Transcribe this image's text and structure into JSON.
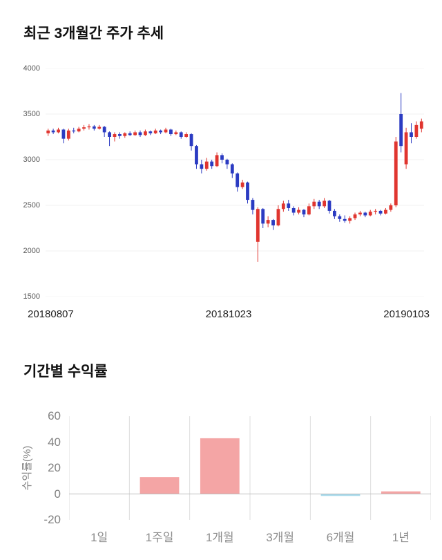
{
  "sections": {
    "price": {
      "title": "최근 3개월간 주가 추세"
    },
    "returns": {
      "title": "기간별 수익률"
    }
  },
  "chart_data": [
    {
      "type": "candlestick",
      "title": "최근 3개월간 주가 추세",
      "ylim": [
        1500,
        4000
      ],
      "yticks": [
        4000,
        3500,
        3000,
        2500,
        2000,
        1500
      ],
      "xticks": [
        "20180807",
        "20181023",
        "20190103"
      ],
      "colors": {
        "up": "#e0352f",
        "down": "#2b3bc2",
        "grid": "#f0f0f0"
      },
      "candles": [
        [
          3290,
          3340,
          3260,
          3320
        ],
        [
          3320,
          3340,
          3280,
          3300
        ],
        [
          3300,
          3350,
          3290,
          3330
        ],
        [
          3330,
          3340,
          3180,
          3230
        ],
        [
          3230,
          3340,
          3210,
          3320
        ],
        [
          3320,
          3350,
          3290,
          3310
        ],
        [
          3310,
          3360,
          3300,
          3340
        ],
        [
          3340,
          3380,
          3320,
          3355
        ],
        [
          3355,
          3390,
          3330,
          3365
        ],
        [
          3365,
          3380,
          3320,
          3340
        ],
        [
          3340,
          3380,
          3330,
          3360
        ],
        [
          3360,
          3370,
          3250,
          3300
        ],
        [
          3300,
          3310,
          3150,
          3250
        ],
        [
          3250,
          3300,
          3200,
          3280
        ],
        [
          3280,
          3300,
          3230,
          3260
        ],
        [
          3260,
          3300,
          3240,
          3290
        ],
        [
          3290,
          3310,
          3260,
          3270
        ],
        [
          3270,
          3320,
          3260,
          3300
        ],
        [
          3300,
          3320,
          3250,
          3270
        ],
        [
          3270,
          3330,
          3260,
          3310
        ],
        [
          3310,
          3320,
          3270,
          3290
        ],
        [
          3290,
          3340,
          3280,
          3320
        ],
        [
          3320,
          3330,
          3280,
          3300
        ],
        [
          3300,
          3350,
          3290,
          3330
        ],
        [
          3330,
          3340,
          3260,
          3280
        ],
        [
          3280,
          3320,
          3270,
          3300
        ],
        [
          3300,
          3310,
          3230,
          3250
        ],
        [
          3250,
          3300,
          3240,
          3280
        ],
        [
          3280,
          3290,
          3100,
          3150
        ],
        [
          3150,
          3160,
          2900,
          2950
        ],
        [
          2950,
          3000,
          2850,
          2900
        ],
        [
          2900,
          3020,
          2880,
          2980
        ],
        [
          2980,
          3000,
          2900,
          2930
        ],
        [
          2930,
          3080,
          2920,
          3050
        ],
        [
          3050,
          3070,
          2960,
          3000
        ],
        [
          3000,
          3010,
          2900,
          2950
        ],
        [
          2950,
          2960,
          2800,
          2850
        ],
        [
          2850,
          2860,
          2650,
          2700
        ],
        [
          2700,
          2780,
          2680,
          2750
        ],
        [
          2750,
          2760,
          2520,
          2560
        ],
        [
          2560,
          2580,
          2400,
          2450
        ],
        [
          2100,
          2480,
          1880,
          2460
        ],
        [
          2460,
          2470,
          2250,
          2300
        ],
        [
          2300,
          2380,
          2260,
          2340
        ],
        [
          2340,
          2350,
          2230,
          2280
        ],
        [
          2280,
          2500,
          2270,
          2460
        ],
        [
          2460,
          2550,
          2430,
          2520
        ],
        [
          2520,
          2560,
          2440,
          2470
        ],
        [
          2470,
          2490,
          2390,
          2420
        ],
        [
          2420,
          2480,
          2400,
          2450
        ],
        [
          2450,
          2460,
          2370,
          2400
        ],
        [
          2400,
          2520,
          2390,
          2490
        ],
        [
          2490,
          2570,
          2460,
          2540
        ],
        [
          2540,
          2560,
          2460,
          2490
        ],
        [
          2490,
          2580,
          2470,
          2550
        ],
        [
          2550,
          2560,
          2410,
          2440
        ],
        [
          2440,
          2460,
          2350,
          2380
        ],
        [
          2380,
          2400,
          2320,
          2350
        ],
        [
          2350,
          2390,
          2310,
          2330
        ],
        [
          2330,
          2380,
          2300,
          2360
        ],
        [
          2360,
          2420,
          2340,
          2400
        ],
        [
          2400,
          2440,
          2380,
          2420
        ],
        [
          2420,
          2430,
          2370,
          2390
        ],
        [
          2390,
          2450,
          2380,
          2430
        ],
        [
          2430,
          2460,
          2400,
          2440
        ],
        [
          2440,
          2450,
          2390,
          2410
        ],
        [
          2410,
          2470,
          2400,
          2450
        ],
        [
          2450,
          2520,
          2430,
          2500
        ],
        [
          2500,
          3250,
          2480,
          3200
        ],
        [
          3500,
          3730,
          3080,
          3150
        ],
        [
          2950,
          3350,
          2900,
          3300
        ],
        [
          3300,
          3400,
          3180,
          3250
        ],
        [
          3250,
          3420,
          3230,
          3380
        ],
        [
          3340,
          3450,
          3300,
          3420
        ]
      ]
    },
    {
      "type": "bar",
      "title": "기간별 수익률",
      "ylabel": "수익률(%)",
      "categories": [
        "1일",
        "1주일",
        "1개월",
        "3개월",
        "6개월",
        "1년"
      ],
      "values": [
        0,
        13,
        43,
        0,
        -1.5,
        2
      ],
      "ylim": [
        -20,
        60
      ],
      "yticks": [
        60,
        40,
        20,
        0,
        -20
      ],
      "colors": {
        "positive": "#f4a5a5",
        "negative": "#a4d8ea",
        "grid": "#dddddd",
        "baseline": "#bbbbbb"
      },
      "legend": null
    }
  ]
}
